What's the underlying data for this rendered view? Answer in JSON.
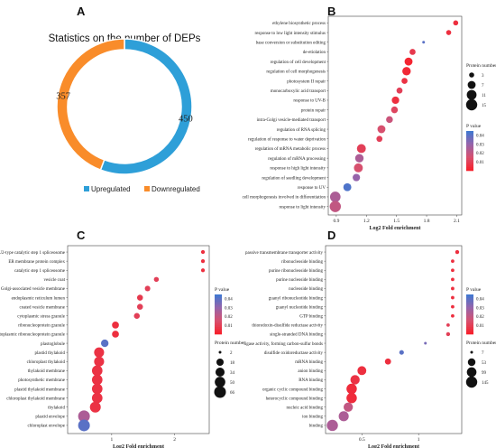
{
  "panels": {
    "a": "A",
    "b": "B",
    "c": "C",
    "d": "D"
  },
  "chart_data": [
    {
      "panel": "A",
      "type": "pie",
      "style": "donut",
      "title": "Statistics on the number of DEPs",
      "slices": [
        {
          "name": "Upregulated",
          "value": 450,
          "color": "#2e9fd8"
        },
        {
          "name": "Downregulated",
          "value": 357,
          "color": "#f98c2a"
        }
      ],
      "legend_placement": "bottom"
    },
    {
      "panel": "B",
      "type": "scatter",
      "xlabel": "Log2 Fold enrichment",
      "xticks": [
        0.9,
        1.2,
        1.5,
        1.8,
        2.1
      ],
      "xlim": [
        0.82,
        2.15
      ],
      "size_legend_title": "Protein number",
      "size_legend": [
        3,
        7,
        11,
        15
      ],
      "color_legend_title": "P value",
      "color_ticks": [
        0.04,
        0.03,
        0.02,
        0.01
      ],
      "color_range": [
        0.0,
        0.045
      ],
      "points": [
        {
          "term": "ethylene biosynthetic process",
          "x": 2.09,
          "size": 3,
          "p": 0.005
        },
        {
          "term": "response to low light intensity stimulus",
          "x": 2.02,
          "size": 3,
          "p": 0.005
        },
        {
          "term": "base conversion or substitution editing",
          "x": 1.77,
          "size": 2,
          "p": 0.04
        },
        {
          "term": "de-etiolation",
          "x": 1.66,
          "size": 4,
          "p": 0.008
        },
        {
          "term": "regulation of cell development",
          "x": 1.62,
          "size": 7,
          "p": 0.002
        },
        {
          "term": "regulation of cell morphogenesis",
          "x": 1.6,
          "size": 8,
          "p": 0.003
        },
        {
          "term": "photosystem II repair",
          "x": 1.58,
          "size": 4,
          "p": 0.006
        },
        {
          "term": "monocarboxylic acid transport",
          "x": 1.53,
          "size": 4,
          "p": 0.01
        },
        {
          "term": "response to UV-B",
          "x": 1.49,
          "size": 6,
          "p": 0.005
        },
        {
          "term": "protein repair",
          "x": 1.48,
          "size": 5,
          "p": 0.012
        },
        {
          "term": "intra-Golgi vesicle-mediated transport",
          "x": 1.43,
          "size": 5,
          "p": 0.018
        },
        {
          "term": "regulation of RNA splicing",
          "x": 1.35,
          "size": 7,
          "p": 0.015
        },
        {
          "term": "regulation of response to water deprivation",
          "x": 1.33,
          "size": 4,
          "p": 0.01
        },
        {
          "term": "regulation of mRNA metabolic process",
          "x": 1.15,
          "size": 9,
          "p": 0.01
        },
        {
          "term": "regulation of mRNA processing",
          "x": 1.13,
          "size": 8,
          "p": 0.025
        },
        {
          "term": "response to high light intensity",
          "x": 1.12,
          "size": 9,
          "p": 0.015
        },
        {
          "term": "regulation of seedling development",
          "x": 1.1,
          "size": 6,
          "p": 0.03
        },
        {
          "term": "response to UV",
          "x": 1.01,
          "size": 7,
          "p": 0.042
        },
        {
          "term": "cell morphogenesis involved in differentiation",
          "x": 0.89,
          "size": 13,
          "p": 0.025
        },
        {
          "term": "response to light intensity",
          "x": 0.89,
          "size": 15,
          "p": 0.02
        }
      ]
    },
    {
      "panel": "C",
      "type": "scatter",
      "xlabel": "Log2 Fold enrichment",
      "xticks": [
        1,
        2
      ],
      "xlim": [
        0.3,
        2.55
      ],
      "size_legend_title": "Protein number",
      "size_legend": [
        2,
        18,
        34,
        50,
        66
      ],
      "color_legend_title": "P value",
      "color_ticks": [
        0.04,
        0.03,
        0.02,
        0.01
      ],
      "color_range": [
        0.0,
        0.045
      ],
      "points": [
        {
          "term": "U2-type catalytic step 1 spliceosome",
          "x": 2.45,
          "size": 3,
          "p": 0.005
        },
        {
          "term": "ER membrane protein complex",
          "x": 2.45,
          "size": 3,
          "p": 0.005
        },
        {
          "term": "catalytic step 1 spliceosome",
          "x": 2.45,
          "size": 3,
          "p": 0.005
        },
        {
          "term": "vesicle coat",
          "x": 1.71,
          "size": 6,
          "p": 0.01
        },
        {
          "term": "Golgi-associated vesicle membrane",
          "x": 1.57,
          "size": 8,
          "p": 0.01
        },
        {
          "term": "endoplasmic reticulum lumen",
          "x": 1.45,
          "size": 10,
          "p": 0.008
        },
        {
          "term": "coated vesicle membrane",
          "x": 1.45,
          "size": 10,
          "p": 0.01
        },
        {
          "term": "cytoplasmic stress granule",
          "x": 1.4,
          "size": 10,
          "p": 0.01
        },
        {
          "term": "ribonucleoprotein granule",
          "x": 1.06,
          "size": 16,
          "p": 0.005
        },
        {
          "term": "cytoplasmic ribonucleoprotein granule",
          "x": 1.06,
          "size": 16,
          "p": 0.005
        },
        {
          "term": "plastoglobule",
          "x": 0.89,
          "size": 20,
          "p": 0.04
        },
        {
          "term": "plastid thylakoid",
          "x": 0.8,
          "size": 44,
          "p": 0.006
        },
        {
          "term": "chloroplast thylakoid",
          "x": 0.8,
          "size": 44,
          "p": 0.006
        },
        {
          "term": "thylakoid membrane",
          "x": 0.77,
          "size": 50,
          "p": 0.006
        },
        {
          "term": "photosynthetic membrane",
          "x": 0.77,
          "size": 50,
          "p": 0.006
        },
        {
          "term": "plastid thylakoid membrane",
          "x": 0.77,
          "size": 50,
          "p": 0.006
        },
        {
          "term": "chloroplast thylakoid membrane",
          "x": 0.77,
          "size": 50,
          "p": 0.006
        },
        {
          "term": "thylakoid",
          "x": 0.74,
          "size": 54,
          "p": 0.006
        },
        {
          "term": "plastid envelope",
          "x": 0.56,
          "size": 66,
          "p": 0.025
        },
        {
          "term": "chloroplast envelope",
          "x": 0.56,
          "size": 66,
          "p": 0.04
        }
      ]
    },
    {
      "panel": "D",
      "type": "scatter",
      "xlabel": "Log2 Fold enrichment",
      "xticks": [
        0.5,
        1.0
      ],
      "xlim": [
        0.18,
        1.38
      ],
      "size_legend_title": "Protein number",
      "size_legend": [
        7,
        53,
        99,
        145
      ],
      "color_legend_title": "P value",
      "color_ticks": [
        0.04,
        0.03,
        0.02,
        0.01
      ],
      "color_range": [
        0.0,
        0.045
      ],
      "points": [
        {
          "term": "passive transmembrane transporter activity",
          "x": 1.34,
          "size": 10,
          "p": 0.005
        },
        {
          "term": "ribonucleoside binding",
          "x": 1.3,
          "size": 8,
          "p": 0.005
        },
        {
          "term": "purine ribonucleoside binding",
          "x": 1.3,
          "size": 8,
          "p": 0.005
        },
        {
          "term": "purine nucleoside binding",
          "x": 1.3,
          "size": 8,
          "p": 0.005
        },
        {
          "term": "nucleoside binding",
          "x": 1.3,
          "size": 8,
          "p": 0.005
        },
        {
          "term": "guanyl ribonucleotide binding",
          "x": 1.3,
          "size": 8,
          "p": 0.005
        },
        {
          "term": "guanyl nucleotide binding",
          "x": 1.3,
          "size": 8,
          "p": 0.005
        },
        {
          "term": "GTP binding",
          "x": 1.3,
          "size": 8,
          "p": 0.005
        },
        {
          "term": "thioredoxin-disulfide reductase activity",
          "x": 1.26,
          "size": 8,
          "p": 0.01
        },
        {
          "term": "single-stranded DNA binding",
          "x": 1.26,
          "size": 10,
          "p": 0.01
        },
        {
          "term": "ligase activity, forming carbon-sulfur bonds",
          "x": 1.06,
          "size": 7,
          "p": 0.035
        },
        {
          "term": "disulfide oxidoreductase activity",
          "x": 0.85,
          "size": 14,
          "p": 0.04
        },
        {
          "term": "mRNA binding",
          "x": 0.73,
          "size": 30,
          "p": 0.005
        },
        {
          "term": "anion binding",
          "x": 0.5,
          "size": 80,
          "p": 0.005
        },
        {
          "term": "RNA binding",
          "x": 0.44,
          "size": 90,
          "p": 0.006
        },
        {
          "term": "organic cyclic compound binding",
          "x": 0.41,
          "size": 120,
          "p": 0.004
        },
        {
          "term": "heterocyclic compound binding",
          "x": 0.41,
          "size": 120,
          "p": 0.004
        },
        {
          "term": "nucleic acid binding",
          "x": 0.38,
          "size": 90,
          "p": 0.02
        },
        {
          "term": "ion binding",
          "x": 0.34,
          "size": 110,
          "p": 0.025
        },
        {
          "term": "binding",
          "x": 0.24,
          "size": 145,
          "p": 0.025
        }
      ]
    }
  ]
}
